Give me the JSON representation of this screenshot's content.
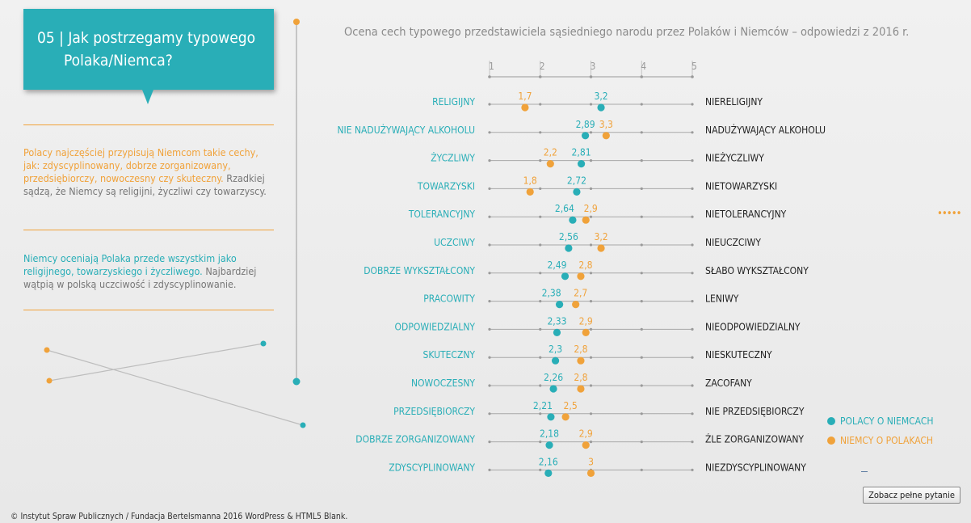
{
  "title": {
    "line1": "05 | Jak postrzegamy typowego",
    "line2": "Polaka/Niemca?"
  },
  "text1": {
    "orange": "Polacy najczęściej przypisują Niemcom takie cechy, jak: zdyscyplinowany, dobrze zorganizowany, przedsiębiorczy, nowoczesny czy skuteczny.",
    "gray": "Rzadkiej sądzą, że Niemcy są religijni, życzliwi czy towarzyscy."
  },
  "text2": {
    "teal": "Niemcy oceniają Polaka przede wszystkim jako religijnego, towarzyskiego i życzliwego.",
    "gray": "Najbardziej wątpią w polską uczciwość i zdyscyplinowanie."
  },
  "chart_data": {
    "type": "scatter",
    "title": "Ocena cech typowego przedstawiciela sąsiedniego narodu przez Polaków i Niemców – odpowiedzi z 2016 r.",
    "scale_ticks": [
      "1",
      "2",
      "3",
      "4",
      "5"
    ],
    "xlim": [
      1,
      5
    ],
    "left_labels": [
      "RELIGIJNY",
      "NIE NADUŻYWAJĄCY ALKOHOLU",
      "ŻYCZLIWY",
      "TOWARZYSKI",
      "TOLERANCYJNY",
      "UCZCIWY",
      "DOBRZE WYKSZTAŁCONY",
      "PRACOWITY",
      "ODPOWIEDZIALNY",
      "SKUTECZNY",
      "NOWOCZESNY",
      "PRZEDSIĘBIORCZY",
      "DOBRZE ZORGANIZOWANY",
      "ZDYSCYPLINOWANY"
    ],
    "right_labels": [
      "NIERELIGIJNY",
      "NADUŻYWAJĄCY ALKOHOLU",
      "NIEŻYCZLIWY",
      "NIETOWARZYSKI",
      "NIETOLERANCYJNY",
      "NIEUCZCIWY",
      "SŁABO WYKSZTAŁCONY",
      "LENIWY",
      "NIEODPOWIEDZIALNY",
      "NIESKUTECZNY",
      "ZACOFANY",
      "NIE PRZEDSIĘBIORCZY",
      "ŹLE ZORGANIZOWANY",
      "NIEZDYSCYPLINOWANY"
    ],
    "series": [
      {
        "name": "POLACY O NIEMCACH",
        "color": "#29aeb7",
        "values": [
          3.2,
          2.89,
          2.81,
          2.72,
          2.64,
          2.56,
          2.49,
          2.38,
          2.33,
          2.3,
          2.26,
          2.21,
          2.18,
          2.16
        ],
        "labels": [
          "3,2",
          "2,89",
          "2,81",
          "2,72",
          "2,64",
          "2,56",
          "2,49",
          "2,38",
          "2,33",
          "2,3",
          "2,26",
          "2,21",
          "2,18",
          "2,16"
        ]
      },
      {
        "name": "NIEMCY O POLAKACH",
        "color": "#f0a23a",
        "values": [
          1.7,
          3.3,
          2.2,
          1.8,
          2.9,
          3.2,
          2.8,
          2.7,
          2.9,
          2.8,
          2.8,
          2.5,
          2.9,
          3.0
        ],
        "labels": [
          "1,7",
          "3,3",
          "2,2",
          "1,8",
          "2,9",
          "3,2",
          "2,8",
          "2,7",
          "2,9",
          "2,8",
          "2,8",
          "2,5",
          "2,9",
          "3"
        ]
      }
    ]
  },
  "button": {
    "label": "Zobacz pełne pytanie"
  },
  "footer": "© Instytut Spraw Publicznych / Fundacja Bertelsmanna 2016 WordPress & HTML5 Blank.",
  "colors": {
    "teal": "#29aeb7",
    "orange": "#f0a23a",
    "axis": "#9a9a9a"
  }
}
